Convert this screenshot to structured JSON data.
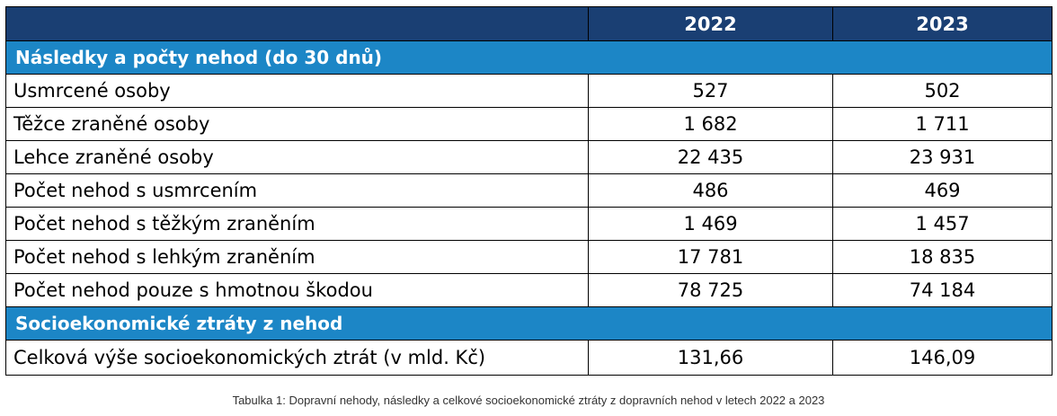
{
  "table": {
    "years": [
      "2022",
      "2023"
    ],
    "sections": [
      {
        "title": "Následky a počty nehod (do 30 dnů)",
        "rows": [
          {
            "label": "Usmrcené osoby",
            "values": [
              "527",
              "502"
            ]
          },
          {
            "label": "Těžce zraněné osoby",
            "values": [
              "1 682",
              "1 711"
            ]
          },
          {
            "label": "Lehce zraněné osoby",
            "values": [
              "22 435",
              "23 931"
            ]
          },
          {
            "label": "Počet nehod s usmrcením",
            "values": [
              "486",
              "469"
            ]
          },
          {
            "label": "Počet nehod s těžkým zraněním",
            "values": [
              "1 469",
              "1 457"
            ]
          },
          {
            "label": "Počet nehod s lehkým zraněním",
            "values": [
              "17 781",
              "18 835"
            ]
          },
          {
            "label": "Počet nehod pouze s hmotnou škodou",
            "values": [
              "78 725",
              "74 184"
            ]
          }
        ]
      },
      {
        "title": "Socioekonomické ztráty z nehod",
        "rows": [
          {
            "label": "Celková výše socioekonomických ztrát (v mld. Kč)",
            "values": [
              "131,66",
              "146,09"
            ]
          }
        ]
      }
    ]
  },
  "caption": "Tabulka 1: Dopravní nehody, následky a celkové socioekonomické ztráty z dopravních nehod v letech 2022 a 2023",
  "colors": {
    "header": "#1a3f73",
    "section": "#1c86c6"
  }
}
